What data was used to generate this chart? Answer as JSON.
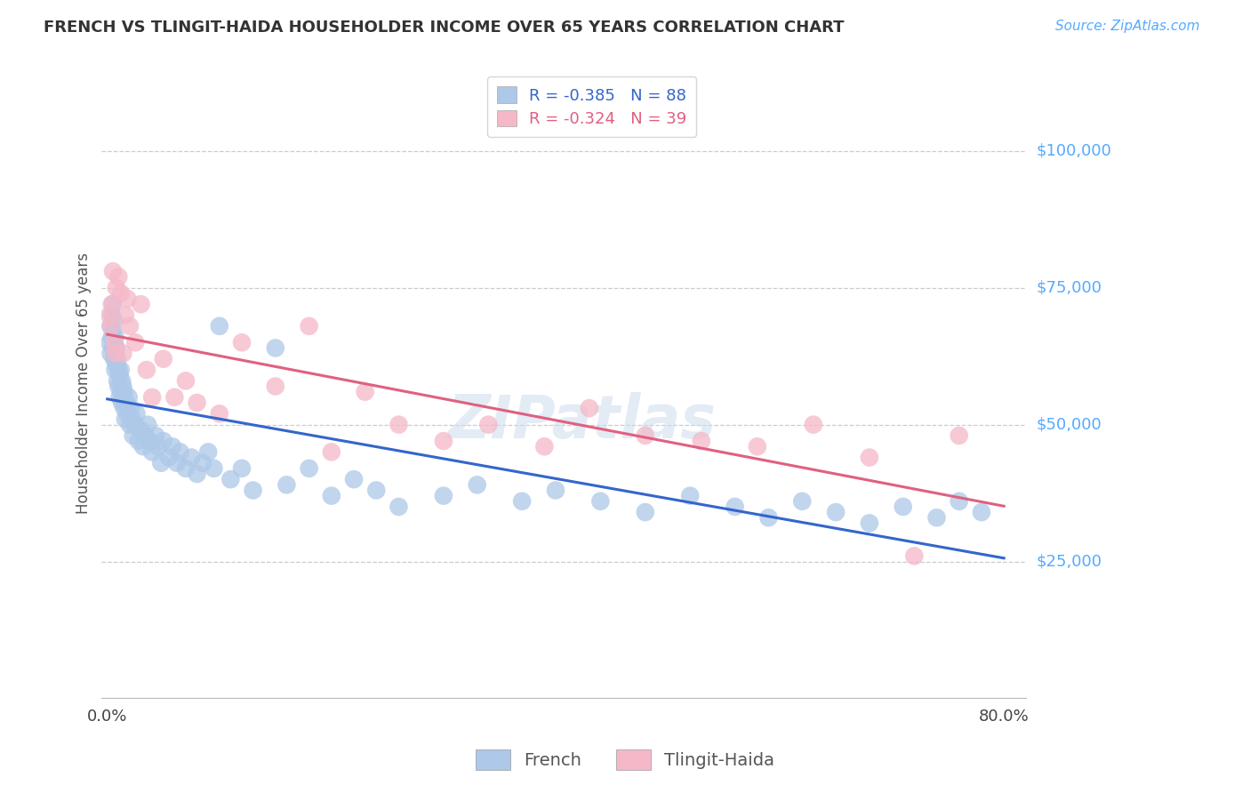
{
  "title": "FRENCH VS TLINGIT-HAIDA HOUSEHOLDER INCOME OVER 65 YEARS CORRELATION CHART",
  "source": "Source: ZipAtlas.com",
  "ylabel": "Householder Income Over 65 years",
  "french_R": -0.385,
  "french_N": 88,
  "tlingit_R": -0.324,
  "tlingit_N": 39,
  "french_color": "#adc8e8",
  "tlingit_color": "#f5b8c8",
  "french_line_color": "#3366cc",
  "tlingit_line_color": "#e06080",
  "watermark": "ZIPatlas",
  "legend_R_blue": "R = -0.385",
  "legend_N_blue": "N = 88",
  "legend_R_pink": "R = -0.324",
  "legend_N_pink": "N = 39",
  "yticks": [
    25000,
    50000,
    75000,
    100000
  ],
  "ytick_labels": [
    "$25,000",
    "$50,000",
    "$75,000",
    "$100,000"
  ],
  "xlim": [
    -0.005,
    0.82
  ],
  "ylim": [
    0,
    115000
  ],
  "french_x": [
    0.002,
    0.003,
    0.003,
    0.004,
    0.004,
    0.005,
    0.005,
    0.005,
    0.006,
    0.006,
    0.006,
    0.007,
    0.007,
    0.007,
    0.008,
    0.008,
    0.009,
    0.009,
    0.01,
    0.01,
    0.011,
    0.011,
    0.012,
    0.012,
    0.013,
    0.013,
    0.014,
    0.014,
    0.015,
    0.015,
    0.016,
    0.017,
    0.018,
    0.019,
    0.02,
    0.021,
    0.022,
    0.023,
    0.025,
    0.026,
    0.028,
    0.03,
    0.032,
    0.034,
    0.036,
    0.038,
    0.04,
    0.043,
    0.045,
    0.048,
    0.05,
    0.055,
    0.058,
    0.062,
    0.065,
    0.07,
    0.075,
    0.08,
    0.085,
    0.09,
    0.095,
    0.1,
    0.11,
    0.12,
    0.13,
    0.15,
    0.16,
    0.18,
    0.2,
    0.22,
    0.24,
    0.26,
    0.3,
    0.33,
    0.37,
    0.4,
    0.44,
    0.48,
    0.52,
    0.56,
    0.59,
    0.62,
    0.65,
    0.68,
    0.71,
    0.74,
    0.76,
    0.78
  ],
  "french_y": [
    65000,
    63000,
    68000,
    66000,
    70000,
    64000,
    67000,
    72000,
    62000,
    65000,
    69000,
    63000,
    66000,
    60000,
    64000,
    61000,
    58000,
    62000,
    57000,
    60000,
    55000,
    59000,
    56000,
    60000,
    54000,
    58000,
    55000,
    57000,
    53000,
    56000,
    51000,
    54000,
    52000,
    55000,
    50000,
    53000,
    51000,
    48000,
    50000,
    52000,
    47000,
    49000,
    46000,
    48000,
    50000,
    47000,
    45000,
    48000,
    46000,
    43000,
    47000,
    44000,
    46000,
    43000,
    45000,
    42000,
    44000,
    41000,
    43000,
    45000,
    42000,
    68000,
    40000,
    42000,
    38000,
    64000,
    39000,
    42000,
    37000,
    40000,
    38000,
    35000,
    37000,
    39000,
    36000,
    38000,
    36000,
    34000,
    37000,
    35000,
    33000,
    36000,
    34000,
    32000,
    35000,
    33000,
    36000,
    34000
  ],
  "tlingit_x": [
    0.002,
    0.003,
    0.004,
    0.005,
    0.006,
    0.007,
    0.008,
    0.01,
    0.012,
    0.014,
    0.016,
    0.018,
    0.02,
    0.025,
    0.03,
    0.035,
    0.04,
    0.05,
    0.06,
    0.07,
    0.08,
    0.1,
    0.12,
    0.15,
    0.18,
    0.2,
    0.23,
    0.26,
    0.3,
    0.34,
    0.39,
    0.43,
    0.48,
    0.53,
    0.58,
    0.63,
    0.68,
    0.72,
    0.76
  ],
  "tlingit_y": [
    70000,
    68000,
    72000,
    78000,
    65000,
    63000,
    75000,
    77000,
    74000,
    63000,
    70000,
    73000,
    68000,
    65000,
    72000,
    60000,
    55000,
    62000,
    55000,
    58000,
    54000,
    52000,
    65000,
    57000,
    68000,
    45000,
    56000,
    50000,
    47000,
    50000,
    46000,
    53000,
    48000,
    47000,
    46000,
    50000,
    44000,
    26000,
    48000
  ]
}
